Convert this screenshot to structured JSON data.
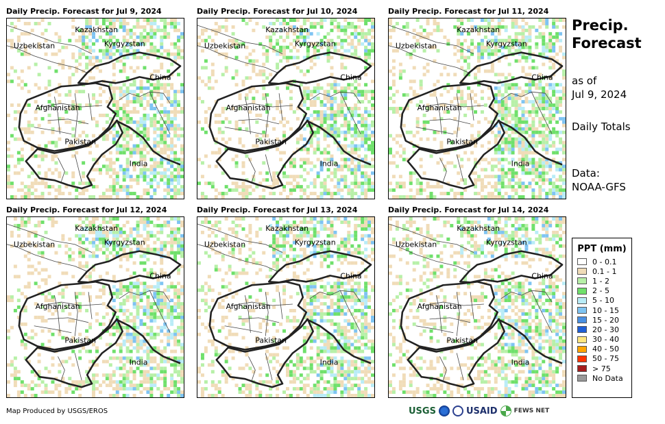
{
  "panels": [
    {
      "title": "Daily Precip. Forecast for Jul 9, 2024",
      "seed": 11
    },
    {
      "title": "Daily Precip. Forecast for Jul 10, 2024",
      "seed": 22
    },
    {
      "title": "Daily Precip. Forecast for Jul 11, 2024",
      "seed": 33
    },
    {
      "title": "Daily Precip. Forecast for Jul 12, 2024",
      "seed": 44
    },
    {
      "title": "Daily Precip. Forecast for Jul 13, 2024",
      "seed": 55
    },
    {
      "title": "Daily Precip. Forecast for Jul 14, 2024",
      "seed": 66
    }
  ],
  "map_labels": {
    "kazakhstan": "Kazakhstan",
    "uzbekistan": "Uzbekistan",
    "kyrgyzstan": "Kyrgyzstan",
    "china": "China",
    "afghanistan": "Afghanistan",
    "pakistan": "Pakistan",
    "india": "India"
  },
  "side": {
    "title_line1": "Precip.",
    "title_line2": "Forecast",
    "asof_line1": "as of",
    "asof_line2": "Jul 9, 2024",
    "daily": "Daily Totals",
    "data_line1": "Data:",
    "data_line2": "NOAA-GFS"
  },
  "legend": {
    "title": "PPT (mm)",
    "items": [
      {
        "label": "0 - 0.1",
        "color": "#ffffff"
      },
      {
        "label": "0.1 - 1",
        "color": "#f0dcb8"
      },
      {
        "label": "1 - 2",
        "color": "#b7f0a8"
      },
      {
        "label": "2 - 5",
        "color": "#6fe06b"
      },
      {
        "label": "5 - 10",
        "color": "#b9ecf7"
      },
      {
        "label": "10 - 15",
        "color": "#7fc4f2"
      },
      {
        "label": "15 - 20",
        "color": "#4a90e2"
      },
      {
        "label": "20 - 30",
        "color": "#1f5fd6"
      },
      {
        "label": "30 - 40",
        "color": "#ffe680"
      },
      {
        "label": "40 - 50",
        "color": "#ffa500"
      },
      {
        "label": "50 - 75",
        "color": "#ff3300"
      },
      {
        "label": "> 75",
        "color": "#a51d1d"
      },
      {
        "label": "No Data",
        "color": "#999999"
      }
    ]
  },
  "footer": "Map Produced by USGS/EROS",
  "logos": {
    "usgs": "USGS",
    "usaid": "USAID",
    "fews": "FEWS NET"
  }
}
